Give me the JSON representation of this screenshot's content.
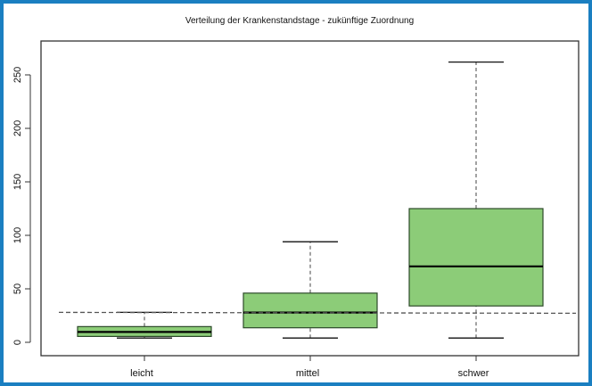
{
  "chart_data": {
    "type": "boxplot",
    "title": "Verteilung der Krankenstandstage - zukünftige Zuordnung",
    "xlabel": "",
    "ylabel": "",
    "ylim": [
      -15,
      280
    ],
    "yticks": [
      0,
      50,
      100,
      150,
      200,
      250
    ],
    "categories": [
      "leicht",
      "mittel",
      "schwer"
    ],
    "boxes": [
      {
        "name": "leicht",
        "whisker_low": 4,
        "q1": 5.5,
        "median": 9.7,
        "q3": 14.7,
        "whisker_high": 28
      },
      {
        "name": "mittel",
        "whisker_low": 4,
        "q1": 13.6,
        "median": 27.8,
        "q3": 46,
        "whisker_high": 94
      },
      {
        "name": "schwer",
        "whisker_low": 4,
        "q1": 34,
        "median": 71,
        "q3": 125,
        "whisker_high": 262
      }
    ],
    "reference_line": {
      "y": 28,
      "style": "dashed"
    },
    "box_color": "#8ccc78",
    "grid": false
  }
}
